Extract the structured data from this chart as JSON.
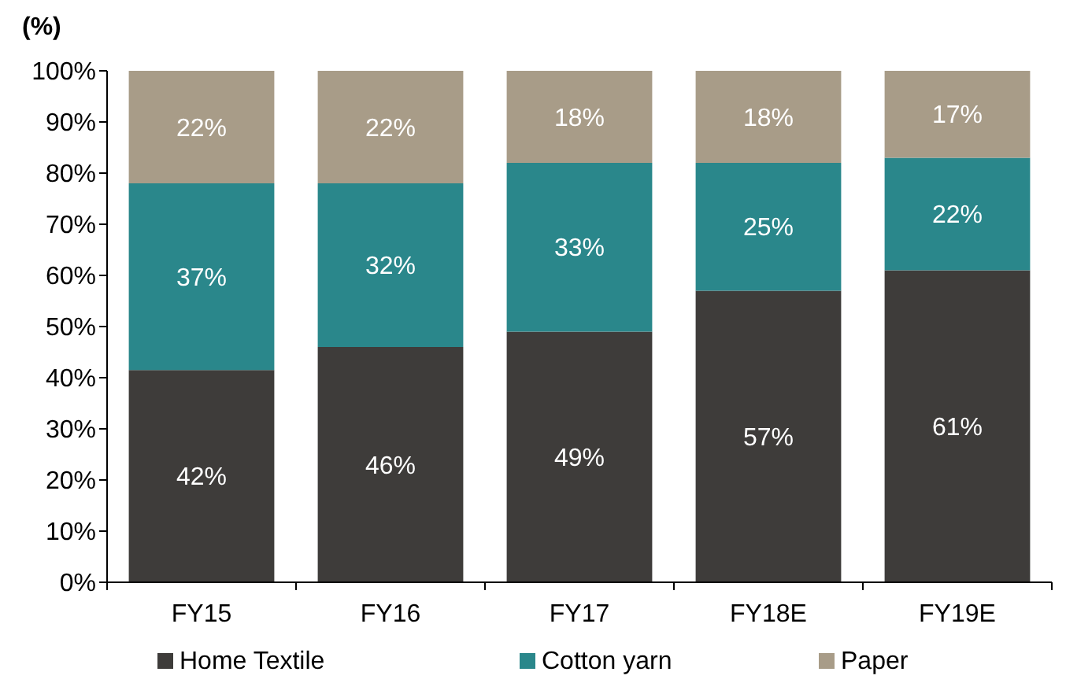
{
  "chart_data": {
    "type": "bar",
    "stacked": true,
    "ylabel": "(%)",
    "categories": [
      "FY15",
      "FY16",
      "FY17",
      "FY18E",
      "FY19E"
    ],
    "series": [
      {
        "name": "Home Textile",
        "color": "#3e3c3a",
        "values": [
          41.5,
          46,
          49,
          57,
          61
        ],
        "value_labels": [
          "42%",
          "46%",
          "49%",
          "57%",
          "61%"
        ]
      },
      {
        "name": "Cotton yarn",
        "color": "#2a878b",
        "values": [
          36.5,
          32,
          33,
          25,
          22
        ],
        "value_labels": [
          "37%",
          "32%",
          "33%",
          "25%",
          "22%"
        ]
      },
      {
        "name": "Paper",
        "color": "#a89c88",
        "values": [
          22,
          22,
          18,
          18,
          17
        ],
        "value_labels": [
          "22%",
          "22%",
          "18%",
          "18%",
          "17%"
        ]
      }
    ],
    "ylim": [
      0,
      100
    ],
    "yticks": [
      {
        "value": 0,
        "label": "0%"
      },
      {
        "value": 10,
        "label": "10%"
      },
      {
        "value": 20,
        "label": "20%"
      },
      {
        "value": 30,
        "label": "30%"
      },
      {
        "value": 40,
        "label": "40%"
      },
      {
        "value": 50,
        "label": "50%"
      },
      {
        "value": 60,
        "label": "60%"
      },
      {
        "value": 70,
        "label": "70%"
      },
      {
        "value": 80,
        "label": "80%"
      },
      {
        "value": 90,
        "label": "90%"
      },
      {
        "value": 100,
        "label": "100%"
      }
    ],
    "grid": false,
    "legend": "bottom"
  }
}
